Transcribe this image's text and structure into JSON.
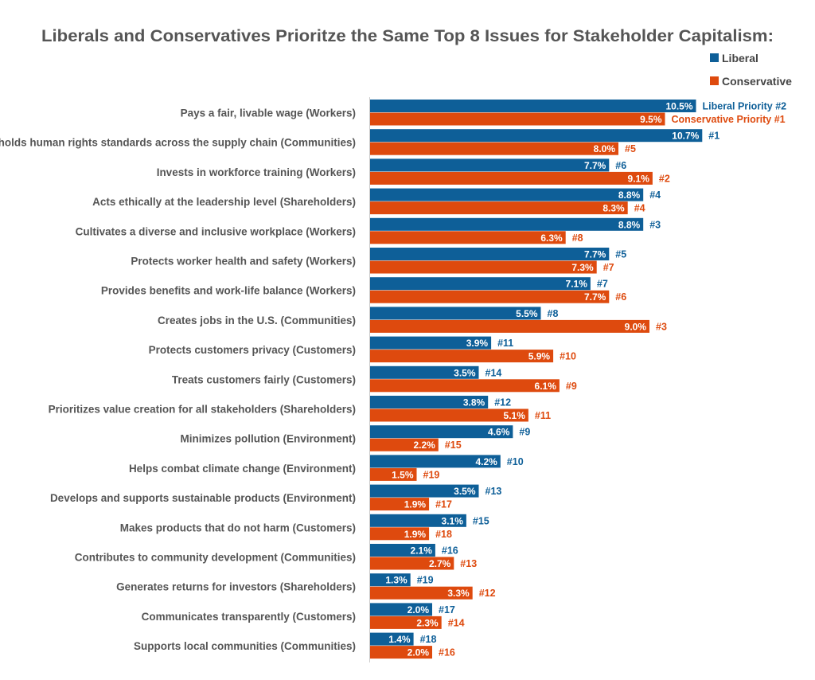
{
  "chart_data": {
    "type": "bar",
    "orientation": "horizontal",
    "title": "Liberals and Conservatives Prioritze the Same Top 8 Issues for Stakeholder Capitalism:",
    "xlabel": "",
    "ylabel": "",
    "xlim": [
      0,
      11
    ],
    "grid": false,
    "legend_position": "top-right",
    "value_suffix": "%",
    "categories": [
      "Pays a fair, livable wage (Workers)",
      "Upholds human rights standards across the supply chain (Communities)",
      "Invests in workforce training (Workers)",
      "Acts ethically at the leadership level (Shareholders)",
      "Cultivates a diverse and inclusive workplace (Workers)",
      "Protects worker health and safety (Workers)",
      "Provides benefits and work-life balance (Workers)",
      "Creates jobs in the U.S. (Communities)",
      "Protects customers privacy (Customers)",
      "Treats customers fairly (Customers)",
      "Prioritizes value creation for all stakeholders (Shareholders)",
      "Minimizes pollution (Environment)",
      "Helps combat climate change (Environment)",
      "Develops and supports sustainable products (Environment)",
      "Makes products that do not harm (Customers)",
      "Contributes to community development (Communities)",
      "Generates returns for investors (Shareholders)",
      "Communicates transparently (Customers)",
      "Supports local communities (Communities)"
    ],
    "series": [
      {
        "name": "Liberal",
        "color": "#0e5f98",
        "values": [
          10.5,
          10.7,
          7.7,
          8.8,
          8.8,
          7.7,
          7.1,
          5.5,
          3.9,
          3.5,
          3.8,
          4.6,
          4.2,
          3.5,
          3.1,
          2.1,
          1.3,
          2.0,
          1.4
        ],
        "value_labels": [
          "10.5%",
          "10.7%",
          "7.7%",
          "8.8%",
          "8.8%",
          "7.7%",
          "7.1%",
          "5.5%",
          "3.9%",
          "3.5%",
          "3.8%",
          "4.6%",
          "4.2%",
          "3.5%",
          "3.1%",
          "2.1%",
          "1.3%",
          "2.0%",
          "1.4%"
        ],
        "rank_labels": [
          "Liberal Priority #2",
          "#1",
          "#6",
          "#4",
          "#3",
          "#5",
          "#7",
          "#8",
          "#11",
          "#14",
          "#12",
          "#9",
          "#10",
          "#13",
          "#15",
          "#16",
          "#19",
          "#17",
          "#18"
        ]
      },
      {
        "name": "Conservative",
        "color": "#de4a0e",
        "values": [
          9.5,
          8.0,
          9.1,
          8.3,
          6.3,
          7.3,
          7.7,
          9.0,
          5.9,
          6.1,
          5.1,
          2.2,
          1.5,
          1.9,
          1.9,
          2.7,
          3.3,
          2.3,
          2.0
        ],
        "value_labels": [
          "9.5%",
          "8.0%",
          "9.1%",
          "8.3%",
          "6.3%",
          "7.3%",
          "7.7%",
          "9.0%",
          "5.9%",
          "6.1%",
          "5.1%",
          "2.2%",
          "1.5%",
          "1.9%",
          "1.9%",
          "2.7%",
          "3.3%",
          "2.3%",
          "2.0%"
        ],
        "rank_labels": [
          "Conservative Priority #1",
          "#5",
          "#2",
          "#4",
          "#8",
          "#7",
          "#6",
          "#3",
          "#10",
          "#9",
          "#11",
          "#15",
          "#19",
          "#17",
          "#18",
          "#13",
          "#12",
          "#14",
          "#16"
        ]
      }
    ]
  }
}
